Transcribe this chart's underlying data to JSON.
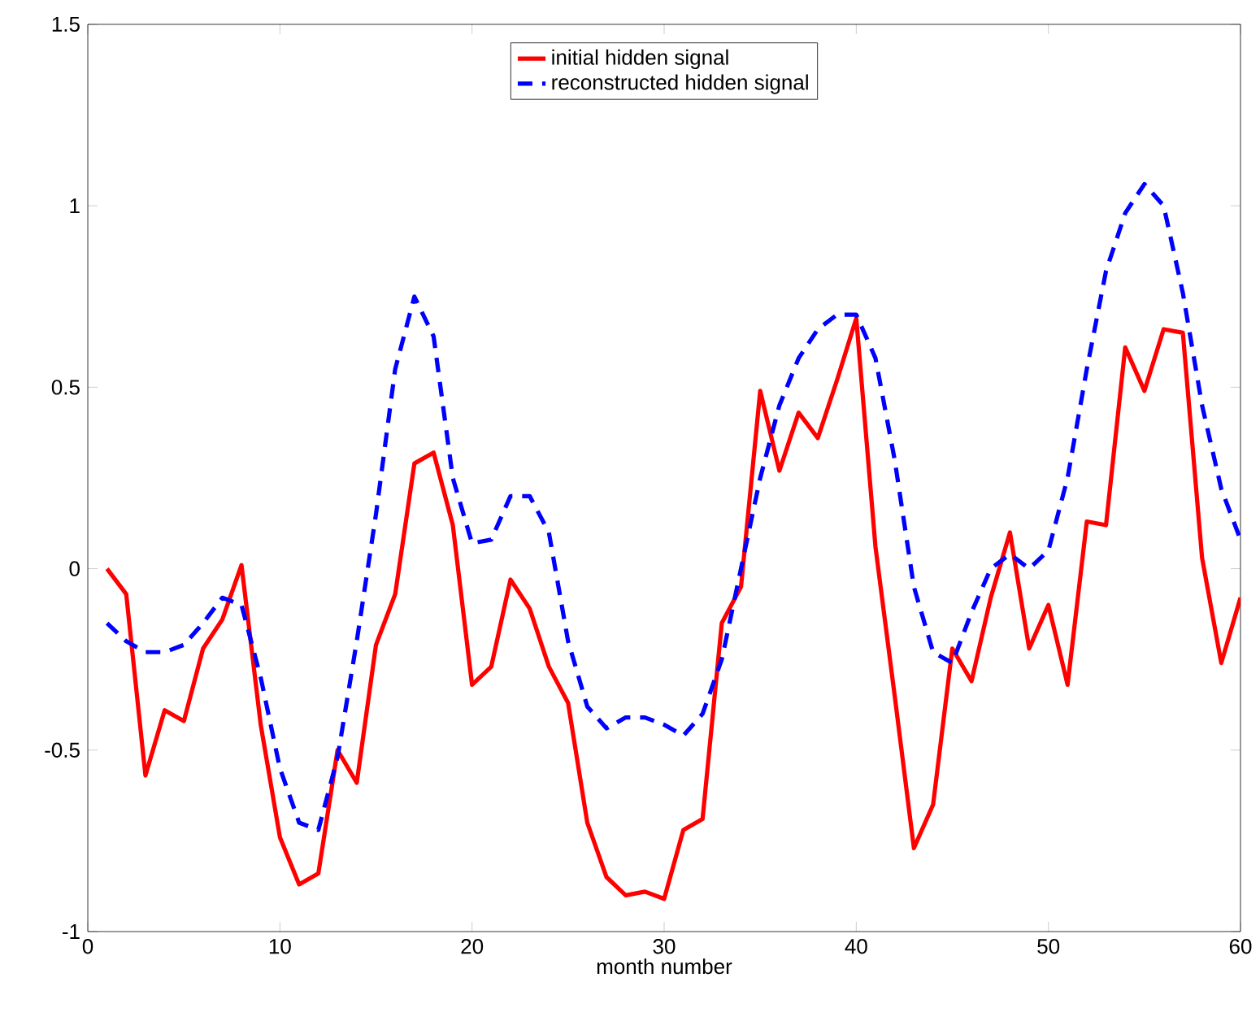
{
  "chart_data": {
    "type": "line",
    "xlabel": "month number",
    "x": [
      1,
      2,
      3,
      4,
      5,
      6,
      7,
      8,
      9,
      10,
      11,
      12,
      13,
      14,
      15,
      16,
      17,
      18,
      19,
      20,
      21,
      22,
      23,
      24,
      25,
      26,
      27,
      28,
      29,
      30,
      31,
      32,
      33,
      34,
      35,
      36,
      37,
      38,
      39,
      40,
      41,
      42,
      43,
      44,
      45,
      46,
      47,
      48,
      49,
      50,
      51,
      52,
      53,
      54,
      55,
      56,
      57,
      58,
      59,
      60
    ],
    "series": [
      {
        "name": "initial hidden signal",
        "color": "#ff0000",
        "line_style": "solid",
        "values": [
          0.0,
          -0.07,
          -0.57,
          -0.39,
          -0.42,
          -0.22,
          -0.14,
          0.01,
          -0.43,
          -0.74,
          -0.87,
          -0.84,
          -0.5,
          -0.59,
          -0.21,
          -0.07,
          0.29,
          0.32,
          0.12,
          -0.32,
          -0.27,
          -0.03,
          -0.11,
          -0.27,
          -0.37,
          -0.7,
          -0.85,
          -0.9,
          -0.89,
          -0.91,
          -0.72,
          -0.69,
          -0.15,
          -0.05,
          0.49,
          0.27,
          0.43,
          0.36,
          0.52,
          0.69,
          0.06,
          -0.35,
          -0.77,
          -0.65,
          -0.22,
          -0.31,
          -0.08,
          0.1,
          -0.22,
          -0.1,
          -0.32,
          0.13,
          0.12,
          0.61,
          0.49,
          0.66,
          0.65,
          0.03,
          -0.26,
          -0.08
        ]
      },
      {
        "name": "reconstructed hidden signal",
        "color": "#0000ff",
        "line_style": "dashed",
        "values": [
          -0.15,
          -0.2,
          -0.23,
          -0.23,
          -0.21,
          -0.15,
          -0.08,
          -0.1,
          -0.3,
          -0.55,
          -0.7,
          -0.72,
          -0.52,
          -0.2,
          0.15,
          0.55,
          0.75,
          0.64,
          0.25,
          0.07,
          0.08,
          0.2,
          0.2,
          0.1,
          -0.2,
          -0.38,
          -0.44,
          -0.41,
          -0.41,
          -0.43,
          -0.46,
          -0.4,
          -0.25,
          0.0,
          0.25,
          0.45,
          0.58,
          0.66,
          0.7,
          0.7,
          0.58,
          0.3,
          -0.05,
          -0.23,
          -0.26,
          -0.12,
          0.0,
          0.04,
          0.0,
          0.05,
          0.25,
          0.55,
          0.82,
          0.98,
          1.06,
          1.0,
          0.76,
          0.45,
          0.22,
          0.08
        ]
      }
    ],
    "xlim": [
      0,
      60
    ],
    "xticks": [
      0,
      10,
      20,
      30,
      40,
      50,
      60
    ],
    "ylim": [
      -1,
      1.5
    ],
    "yticks": [
      -1,
      {
        "value": -0.5,
        "label": "-0.5"
      },
      0,
      0.5,
      1,
      1.5
    ],
    "legend": "top",
    "grid": false,
    "marker": "none"
  }
}
